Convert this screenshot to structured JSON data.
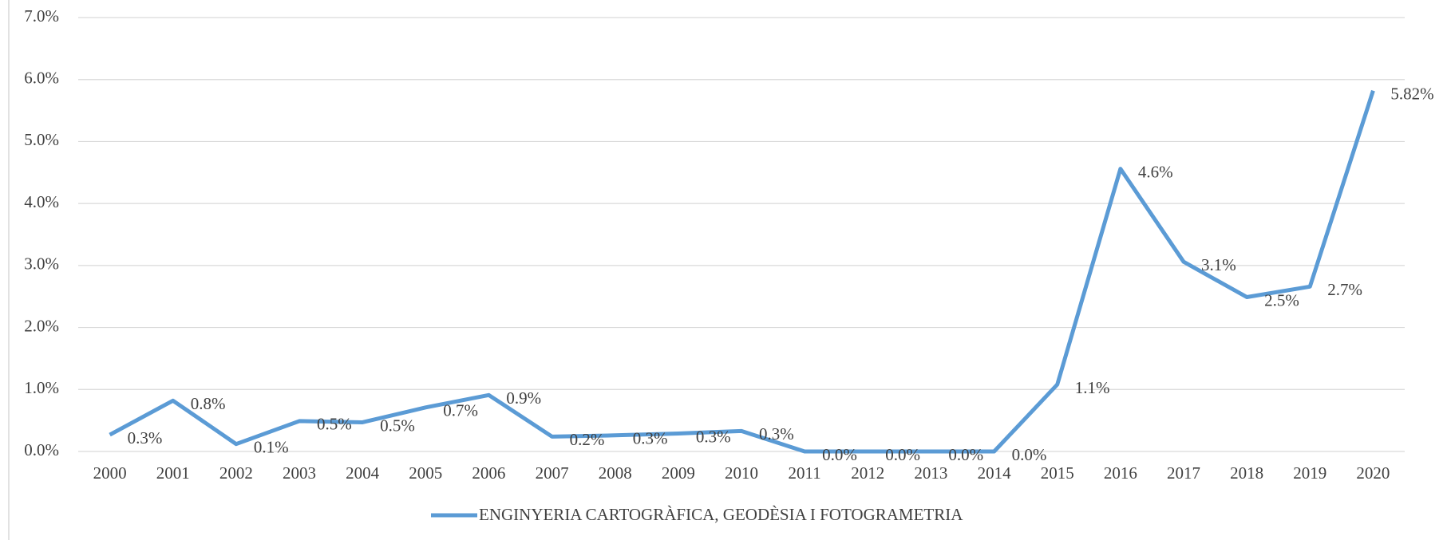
{
  "chart_data": {
    "type": "line",
    "categories": [
      "2000",
      "2001",
      "2002",
      "2003",
      "2004",
      "2005",
      "2006",
      "2007",
      "2008",
      "2009",
      "2010",
      "2011",
      "2012",
      "2013",
      "2014",
      "2015",
      "2016",
      "2017",
      "2018",
      "2019",
      "2020"
    ],
    "series": [
      {
        "name": "ENGINYERIA CARTOGRÀFICA, GEODÈSIA I FOTOGRAMETRIA",
        "color": "#5b9bd5",
        "values": [
          0.27,
          0.82,
          0.12,
          0.49,
          0.47,
          0.71,
          0.91,
          0.24,
          0.26,
          0.29,
          0.33,
          0,
          0,
          0,
          0,
          1.08,
          4.56,
          3.06,
          2.49,
          2.66,
          5.82
        ],
        "value_labels": [
          "0.3%",
          "0.8%",
          "0.1%",
          "0.5%",
          "0.5%",
          "0.7%",
          "0.9%",
          "0.2%",
          "0.3%",
          "0.3%",
          "0.3%",
          "0.0%",
          "0.0%",
          "0.0%",
          "0.0%",
          "1.1%",
          "4.6%",
          "3.1%",
          "2.5%",
          "2.7%",
          "5.82%"
        ]
      }
    ],
    "ylim": [
      0,
      7
    ],
    "yticks": [
      {
        "value": 0,
        "label": "0.0%"
      },
      {
        "value": 1,
        "label": "1.0%"
      },
      {
        "value": 2,
        "label": "2.0%"
      },
      {
        "value": 3,
        "label": "3.0%"
      },
      {
        "value": 4,
        "label": "4.0%"
      },
      {
        "value": 5,
        "label": "5.0%"
      },
      {
        "value": 6,
        "label": "6.0%"
      },
      {
        "value": 7,
        "label": "7.0%"
      }
    ],
    "grid": true,
    "legend": "bottom"
  }
}
